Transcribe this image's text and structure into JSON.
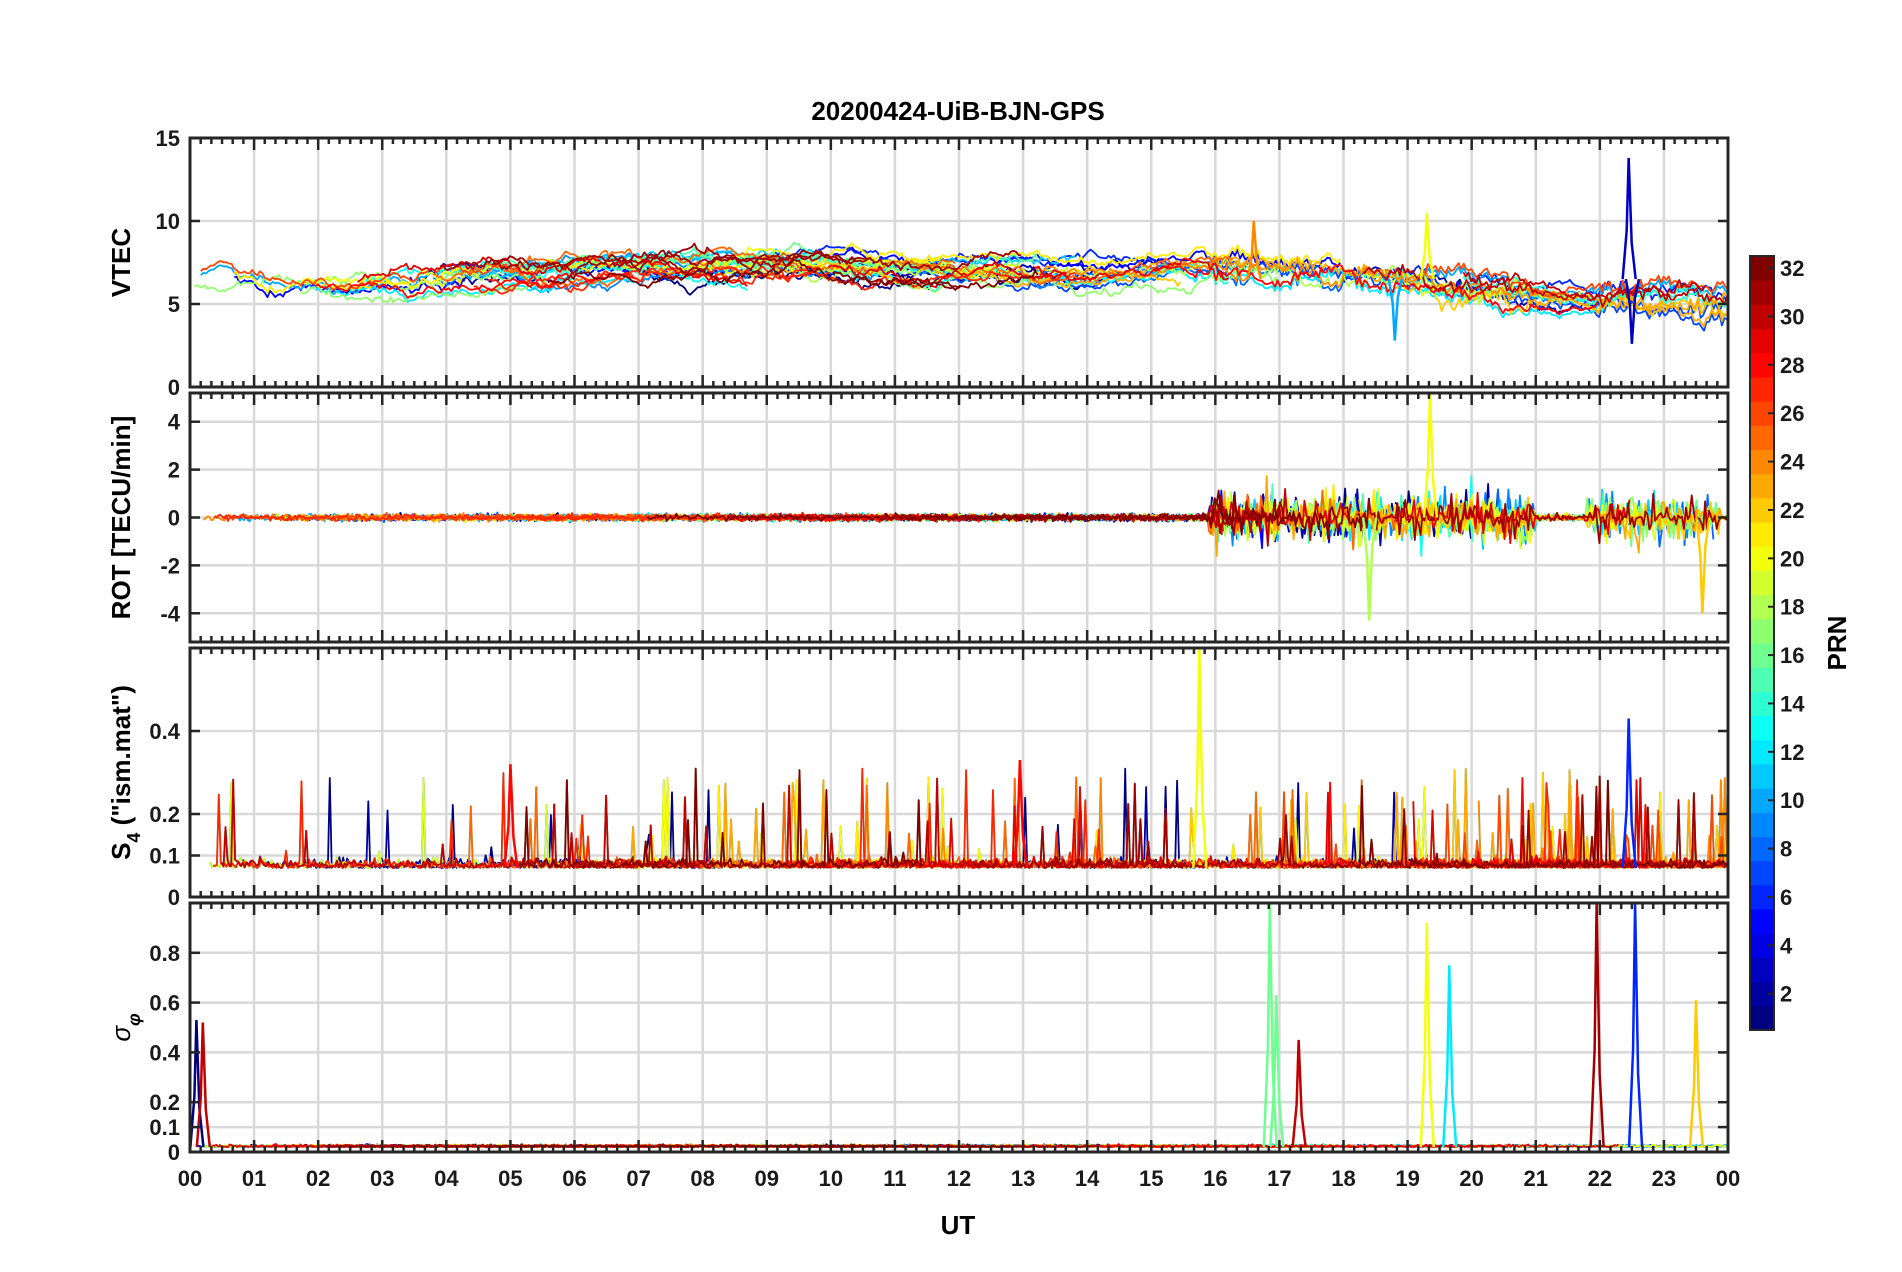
{
  "chart_data": {
    "type": "line",
    "title": "20200424-UiB-BJN-GPS",
    "xlabel": "UT",
    "x_tick_labels": [
      "00",
      "01",
      "02",
      "03",
      "04",
      "05",
      "06",
      "07",
      "08",
      "09",
      "10",
      "11",
      "12",
      "13",
      "14",
      "15",
      "16",
      "17",
      "18",
      "19",
      "20",
      "21",
      "22",
      "23",
      "00"
    ],
    "xlim_hours": [
      0,
      24
    ],
    "colorbar": {
      "label": "PRN",
      "range": [
        1,
        32
      ],
      "tick_labels": [
        "2",
        "4",
        "6",
        "8",
        "10",
        "12",
        "14",
        "16",
        "18",
        "20",
        "22",
        "24",
        "26",
        "28",
        "30",
        "32"
      ],
      "colormap": "jet"
    },
    "panels": [
      {
        "id": "vtec",
        "ylabel": "VTEC",
        "ylim": [
          0,
          15
        ],
        "y_ticks": [
          0,
          5,
          10,
          15
        ],
        "y_tick_labels": [
          "0",
          "5",
          "10",
          "15"
        ],
        "series_summary": {
          "baseline_profile_hours": [
            0,
            2,
            4,
            6,
            8,
            10,
            12,
            14,
            16,
            17,
            18,
            19,
            20,
            21,
            22,
            23,
            24
          ],
          "baseline_profile_values": [
            6.5,
            6.2,
            6.6,
            7.0,
            7.2,
            7.3,
            7.0,
            7.1,
            7.4,
            7.2,
            7.0,
            6.8,
            6.2,
            5.8,
            5.5,
            5.6,
            5.0
          ],
          "notable_peaks": [
            {
              "hour": 22.45,
              "value": 13.8,
              "prn": 3
            },
            {
              "hour": 19.3,
              "value": 10.5,
              "prn": 20
            },
            {
              "hour": 16.6,
              "value": 10.0,
              "prn": 24
            }
          ],
          "notable_dips": [
            {
              "hour": 18.8,
              "value": 2.8,
              "prn": 10
            },
            {
              "hour": 22.5,
              "value": 2.6,
              "prn": 3
            }
          ]
        }
      },
      {
        "id": "rot",
        "ylabel": "ROT [TECU/min]",
        "ylim": [
          -5.2,
          5.2
        ],
        "y_ticks": [
          -4,
          -2,
          0,
          2,
          4
        ],
        "y_tick_labels": [
          "-4",
          "-2",
          "0",
          "2",
          "4"
        ],
        "series_summary": {
          "quiet_amplitude": 0.3,
          "active_intervals_hours": [
            [
              15.9,
              21.0
            ],
            [
              21.8,
              23.9
            ]
          ],
          "active_amplitude": 3.5,
          "notable_peaks": [
            {
              "hour": 19.35,
              "value": 5.2,
              "prn": 20
            },
            {
              "hour": 18.4,
              "value": -4.3,
              "prn": 18
            },
            {
              "hour": 23.6,
              "value": -4.0,
              "prn": 22
            }
          ]
        }
      },
      {
        "id": "s4",
        "ylabel": "S4 (\"ism.mat\")",
        "ylabel_main": "S",
        "ylabel_sub": "4",
        "ylabel_rest": " (\"ism.mat\")",
        "ylim": [
          0,
          0.6
        ],
        "y_ticks": [
          0,
          0.1,
          0.2,
          0.4
        ],
        "y_tick_labels": [
          "0",
          "0.1",
          "0.2",
          "0.4"
        ],
        "series_summary": {
          "background_level": 0.07,
          "typical_excursion_max": 0.3,
          "notable_peaks": [
            {
              "hour": 15.75,
              "value": 0.6,
              "prn": 20
            },
            {
              "hour": 22.45,
              "value": 0.43,
              "prn": 6
            },
            {
              "hour": 5.0,
              "value": 0.32,
              "prn": 28
            },
            {
              "hour": 12.95,
              "value": 0.33,
              "prn": 28
            }
          ]
        }
      },
      {
        "id": "sigma_phi",
        "ylabel": "σφ",
        "ylabel_main": "σ",
        "ylabel_sub": "φ",
        "ylim": [
          0,
          1.0
        ],
        "y_ticks": [
          0,
          0.1,
          0.2,
          0.4,
          0.6,
          0.8
        ],
        "y_tick_labels": [
          "0",
          "0.1",
          "0.2",
          "0.4",
          "0.6",
          "0.8"
        ],
        "series_summary": {
          "background_level": 0.02,
          "notable_peaks": [
            {
              "hour": 0.1,
              "value": 0.53,
              "prn": 1
            },
            {
              "hour": 0.2,
              "value": 0.52,
              "prn": 30
            },
            {
              "hour": 16.85,
              "value": 1.0,
              "prn": 16
            },
            {
              "hour": 16.95,
              "value": 0.63,
              "prn": 16
            },
            {
              "hour": 17.3,
              "value": 0.45,
              "prn": 30
            },
            {
              "hour": 19.3,
              "value": 0.92,
              "prn": 20
            },
            {
              "hour": 19.65,
              "value": 0.75,
              "prn": 12
            },
            {
              "hour": 21.95,
              "value": 1.0,
              "prn": 31
            },
            {
              "hour": 22.55,
              "value": 1.0,
              "prn": 6
            },
            {
              "hour": 23.5,
              "value": 0.61,
              "prn": 22
            }
          ]
        }
      }
    ]
  }
}
